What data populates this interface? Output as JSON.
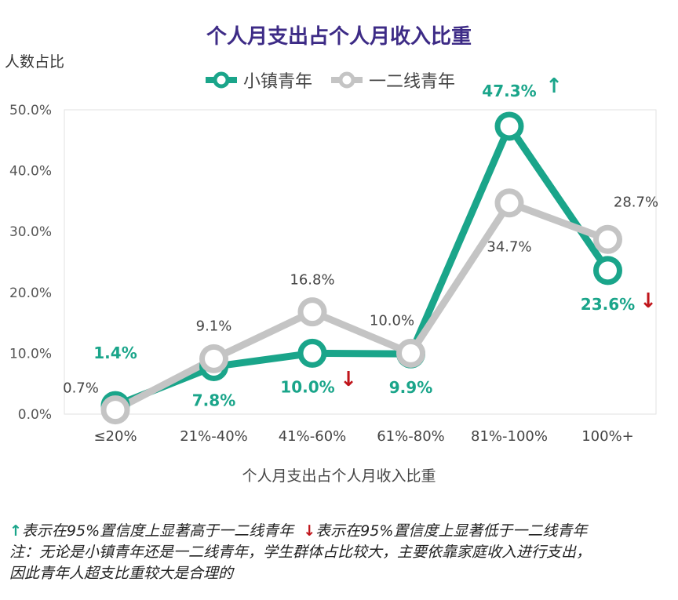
{
  "chart_data": {
    "type": "line",
    "title": "个人月支出占个人月收入比重",
    "xlabel": "个人月支出占个人月收入比重",
    "ylabel": "人数占比",
    "categories": [
      "≤20%",
      "21%-40%",
      "41%-60%",
      "61%-80%",
      "81%-100%",
      "100%+"
    ],
    "ylim": [
      0,
      50
    ],
    "yticks": [
      "0.0%",
      "10.0%",
      "20.0%",
      "30.0%",
      "40.0%",
      "50.0%"
    ],
    "legend_position": "top",
    "series": [
      {
        "name": "小镇青年",
        "color": "#1aa58a",
        "values": [
          1.4,
          7.8,
          10.0,
          9.9,
          47.3,
          23.6
        ],
        "labels": [
          "1.4%",
          "7.8%",
          "10.0%",
          "9.9%",
          "47.3%",
          "23.6%"
        ]
      },
      {
        "name": "一二线青年",
        "color": "#c4c4c4",
        "values": [
          0.7,
          9.1,
          16.8,
          10.0,
          34.7,
          28.7
        ],
        "labels": [
          "0.7%",
          "9.1%",
          "16.8%",
          "10.0%",
          "34.7%",
          "28.7%"
        ]
      }
    ],
    "significance": [
      {
        "category_index": 2,
        "direction": "down",
        "symbol": "↓"
      },
      {
        "category_index": 4,
        "direction": "up",
        "symbol": "↑"
      },
      {
        "category_index": 5,
        "direction": "down",
        "symbol": "↓"
      }
    ]
  },
  "notes": {
    "up_symbol": "↑",
    "up_text": "表示在95%置信度上显著高于一二线青年",
    "down_symbol": "↓",
    "down_text": "表示在95%置信度上显著低于一二线青年",
    "line1": "注：无论是小镇青年还是一二线青年，学生群体占比较大，主要依靠家庭收入进行支出，",
    "line2": "因此青年人超支比重较大是合理的"
  }
}
